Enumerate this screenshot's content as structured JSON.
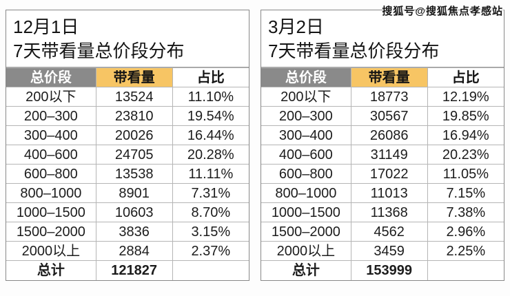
{
  "watermark": "搜狐号@搜狐焦点孝感站",
  "colors": {
    "header_gray": "#8a8a8a",
    "header_amber": "#f7c564",
    "border": "#b5b5b5",
    "text": "#1c1c1c"
  },
  "chart_data": [
    {
      "type": "table",
      "title_date": "12月1日",
      "title": "7天带看量总价段分布",
      "columns": [
        "总价段",
        "带看量",
        "占比"
      ],
      "rows": [
        [
          "200以下",
          "13524",
          "11.10%"
        ],
        [
          "200–300",
          "23810",
          "19.54%"
        ],
        [
          "300–400",
          "20026",
          "16.44%"
        ],
        [
          "400–600",
          "24705",
          "20.28%"
        ],
        [
          "600–800",
          "13538",
          "11.11%"
        ],
        [
          "800–1000",
          "8901",
          "7.31%"
        ],
        [
          "1000–1500",
          "10603",
          "8.70%"
        ],
        [
          "1500–2000",
          "3836",
          "3.15%"
        ],
        [
          "2000以上",
          "2884",
          "2.37%"
        ]
      ],
      "total_label": "总计",
      "total_views": "121827"
    },
    {
      "type": "table",
      "title_date": "3月2日",
      "title": "7天带看量总价段分布",
      "columns": [
        "总价段",
        "带看量",
        "占比"
      ],
      "rows": [
        [
          "200以下",
          "18773",
          "12.19%"
        ],
        [
          "200–300",
          "30567",
          "19.85%"
        ],
        [
          "300–400",
          "26086",
          "16.94%"
        ],
        [
          "400–600",
          "31149",
          "20.23%"
        ],
        [
          "600–800",
          "17022",
          "11.05%"
        ],
        [
          "800–1000",
          "11013",
          "7.15%"
        ],
        [
          "1000–1500",
          "11368",
          "7.38%"
        ],
        [
          "1500–2000",
          "4562",
          "2.96%"
        ],
        [
          "2000以上",
          "3459",
          "2.25%"
        ]
      ],
      "total_label": "总计",
      "total_views": "153999"
    }
  ]
}
